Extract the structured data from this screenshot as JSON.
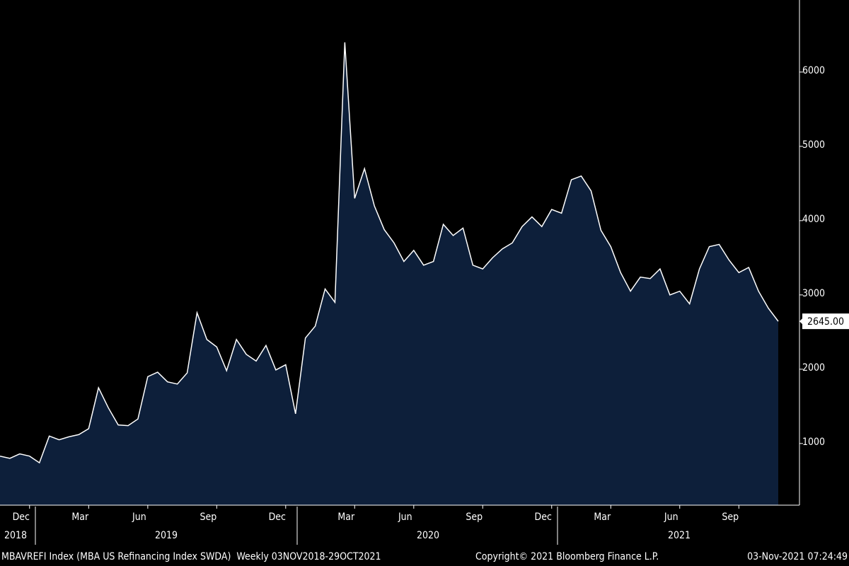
{
  "chart_data": {
    "type": "area",
    "color": "#0d1f3a",
    "line_color": "#ffffff",
    "categories": [
      null,
      null,
      null,
      "Dec",
      null,
      null,
      null,
      null,
      null,
      "Mar",
      null,
      null,
      null,
      null,
      null,
      "Jun",
      null,
      null,
      null,
      null,
      null,
      null,
      "Sep",
      null,
      null,
      null,
      null,
      null,
      null,
      "Dec",
      null,
      null,
      null,
      null,
      null,
      null,
      "Mar",
      null,
      null,
      null,
      null,
      null,
      "Jun",
      null,
      null,
      null,
      null,
      null,
      null,
      "Sep",
      null,
      null,
      null,
      null,
      null,
      null,
      "Dec",
      null,
      null,
      null,
      null,
      null,
      "Mar",
      null,
      null,
      null,
      null,
      null,
      null,
      "Jun",
      null,
      null,
      null,
      null,
      null,
      "Sep",
      null,
      null,
      null,
      null
    ],
    "years": [
      "2018",
      "2019",
      "2020",
      "2021"
    ],
    "values": [
      830,
      800,
      860,
      830,
      740,
      1100,
      1050,
      1090,
      1120,
      1200,
      1750,
      1480,
      1250,
      1240,
      1330,
      1900,
      1960,
      1830,
      1800,
      1950,
      2760,
      2400,
      2300,
      1980,
      2400,
      2200,
      2110,
      2320,
      1990,
      2060,
      1400,
      2420,
      2580,
      3080,
      2900,
      6400,
      4300,
      4700,
      4200,
      3880,
      3700,
      3450,
      3600,
      3400,
      3450,
      3950,
      3800,
      3900,
      3400,
      3350,
      3500,
      3620,
      3700,
      3920,
      4050,
      3920,
      4150,
      4100,
      4550,
      4600,
      4400,
      3870,
      3650,
      3300,
      3050,
      3240,
      3220,
      3350,
      3000,
      3050,
      2880,
      3350,
      3650,
      3680,
      3470,
      3300,
      3370,
      3050,
      2820,
      2645
    ],
    "last_label": "2645.00",
    "ylim": [
      170,
      6970
    ],
    "yticks": [
      1000,
      2000,
      3000,
      4000,
      5000,
      6000
    ],
    "footer": {
      "left": "MBAVREFI Index (MBA US Refinancing Index SWDA)  Weekly 03NOV2018-29OCT2021",
      "middle": "Copyright© 2021 Bloomberg Finance L.P.",
      "right": "03-Nov-2021 07:24:49"
    }
  }
}
